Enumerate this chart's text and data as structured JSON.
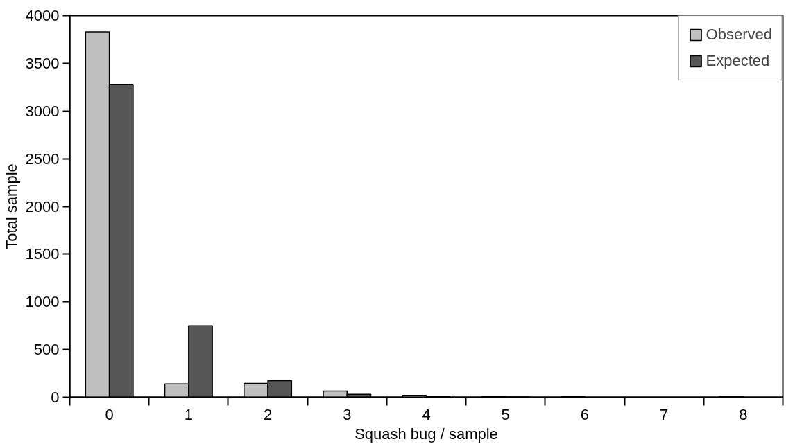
{
  "chart_data": {
    "type": "bar",
    "xlabel": "Squash bug / sample",
    "ylabel": "Total sample",
    "categories": [
      "0",
      "1",
      "2",
      "3",
      "4",
      "5",
      "6",
      "7",
      "8"
    ],
    "series": [
      {
        "name": "Observed",
        "color": "#c0c0c0",
        "values": [
          3830,
          140,
          145,
          65,
          20,
          8,
          8,
          null,
          6
        ]
      },
      {
        "name": "Expected",
        "color": "#555555",
        "values": [
          3280,
          750,
          175,
          30,
          10,
          3,
          null,
          null,
          null
        ]
      }
    ],
    "ylim": [
      0,
      4000
    ],
    "yticks": [
      0,
      500,
      1000,
      1500,
      2000,
      2500,
      3000,
      3500,
      4000
    ],
    "grid": false,
    "legend": "top right"
  }
}
